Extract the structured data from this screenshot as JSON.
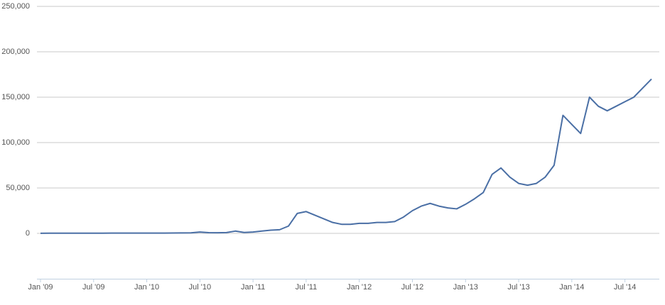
{
  "chart_data": {
    "type": "line",
    "x": [
      "2009-01",
      "2009-02",
      "2009-03",
      "2009-04",
      "2009-05",
      "2009-06",
      "2009-07",
      "2009-08",
      "2009-09",
      "2009-10",
      "2009-11",
      "2009-12",
      "2010-01",
      "2010-02",
      "2010-03",
      "2010-04",
      "2010-05",
      "2010-06",
      "2010-07",
      "2010-08",
      "2010-09",
      "2010-10",
      "2010-11",
      "2010-12",
      "2011-01",
      "2011-02",
      "2011-03",
      "2011-04",
      "2011-05",
      "2011-06",
      "2011-07",
      "2011-08",
      "2011-09",
      "2011-10",
      "2011-11",
      "2011-12",
      "2012-01",
      "2012-02",
      "2012-03",
      "2012-04",
      "2012-05",
      "2012-06",
      "2012-07",
      "2012-08",
      "2012-09",
      "2012-10",
      "2012-11",
      "2012-12",
      "2013-01",
      "2013-02",
      "2013-03",
      "2013-04",
      "2013-05",
      "2013-06",
      "2013-07",
      "2013-08",
      "2013-09",
      "2013-10",
      "2013-11",
      "2013-12",
      "2014-01",
      "2014-02",
      "2014-03",
      "2014-04",
      "2014-05",
      "2014-06",
      "2014-07",
      "2014-08",
      "2014-09",
      "2014-10"
    ],
    "series": [
      {
        "color": "#4a6fa5",
        "values": [
          100,
          200,
          200,
          200,
          200,
          200,
          200,
          200,
          300,
          300,
          300,
          300,
          300,
          300,
          300,
          400,
          500,
          600,
          1500,
          800,
          700,
          900,
          2500,
          1000,
          1500,
          2500,
          3500,
          4000,
          8000,
          22000,
          24000,
          20000,
          16000,
          12000,
          10000,
          10000,
          11000,
          11000,
          12000,
          12000,
          13000,
          18000,
          25000,
          30000,
          33000,
          30000,
          28000,
          27000,
          32000,
          38000,
          45000,
          65000,
          72000,
          62000,
          55000,
          53000,
          55000,
          62000,
          75000,
          130000,
          120000,
          110000,
          150000,
          140000,
          135000,
          140000,
          145000,
          150000,
          160000,
          170000
        ]
      }
    ],
    "xlim": [
      "2009-01",
      "2014-10"
    ],
    "xticks": [
      {
        "value": "2009-01",
        "label": "Jan '09"
      },
      {
        "value": "2009-07",
        "label": "Jul '09"
      },
      {
        "value": "2010-01",
        "label": "Jan '10"
      },
      {
        "value": "2010-07",
        "label": "Jul '10"
      },
      {
        "value": "2011-01",
        "label": "Jan '11"
      },
      {
        "value": "2011-07",
        "label": "Jul '11"
      },
      {
        "value": "2012-01",
        "label": "Jan '12"
      },
      {
        "value": "2012-07",
        "label": "Jul '12"
      },
      {
        "value": "2013-01",
        "label": "Jan '13"
      },
      {
        "value": "2013-07",
        "label": "Jul '13"
      },
      {
        "value": "2014-01",
        "label": "Jan '14"
      },
      {
        "value": "2014-07",
        "label": "Jul '14"
      }
    ],
    "ylim": [
      -50000,
      250000
    ],
    "yticks": [
      0,
      {
        "value": 50000,
        "label": "50,000"
      },
      {
        "value": 100000,
        "label": "100,000"
      },
      {
        "value": 150000,
        "label": "150,000"
      },
      {
        "value": 200000,
        "label": "200,000"
      },
      {
        "value": 250000,
        "label": "250,000"
      }
    ],
    "grid": true
  }
}
